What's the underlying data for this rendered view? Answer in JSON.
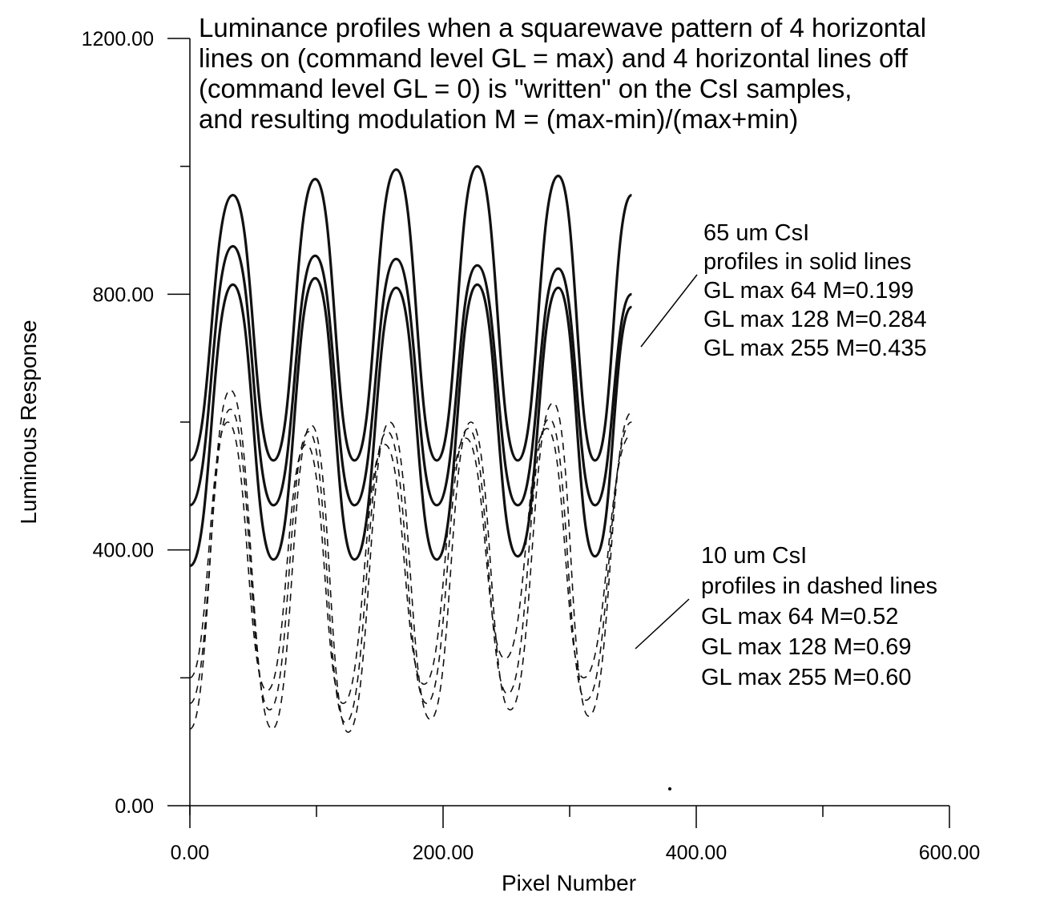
{
  "chart_data": {
    "type": "line",
    "title": [
      "Luminance profiles when a squarewave pattern of 4 horizontal",
      "lines on (command level GL = max) and 4 horizontal lines off",
      "(command level GL = 0) is \"written\" on the CsI samples,",
      "and resulting modulation  M = (max-min)/(max+min)"
    ],
    "xlabel": "Pixel Number",
    "ylabel": "Luminous Response",
    "xlim": [
      0,
      600
    ],
    "ylim": [
      0,
      1200
    ],
    "x_tick_labels": [
      "0.00",
      "200.00",
      "400.00",
      "600.00"
    ],
    "y_tick_labels": [
      "0.00",
      "400.00",
      "800.00",
      "1200.00"
    ],
    "annotations": {
      "csi65": [
        "65 um CsI",
        "profiles in solid lines",
        "GL max 64   M=0.199",
        "GL max 128 M=0.284",
        "GL max 255 M=0.435"
      ],
      "csi10": [
        "10 um CsI",
        "profiles in dashed lines",
        "GL max  64  M=0.52",
        "GL max 128 M=0.69",
        "GL max 255 M=0.60"
      ]
    },
    "series": [
      {
        "style": "solid",
        "x": [
          0,
          34,
          66,
          99,
          130,
          163,
          195,
          227,
          259,
          291,
          320,
          349
        ],
        "y": [
          540,
          955,
          540,
          980,
          540,
          995,
          540,
          1000,
          540,
          985,
          540,
          955
        ]
      },
      {
        "style": "solid",
        "x": [
          0,
          34,
          66,
          99,
          130,
          163,
          195,
          227,
          259,
          291,
          320,
          349
        ],
        "y": [
          470,
          875,
          470,
          860,
          470,
          855,
          470,
          845,
          470,
          840,
          470,
          800
        ]
      },
      {
        "style": "solid",
        "x": [
          0,
          34,
          66,
          99,
          130,
          163,
          195,
          227,
          259,
          291,
          320,
          349
        ],
        "y": [
          375,
          815,
          385,
          825,
          385,
          810,
          385,
          815,
          390,
          810,
          390,
          780
        ]
      },
      {
        "style": "dashed",
        "x": [
          0,
          32,
          65,
          96,
          125,
          158,
          190,
          222,
          253,
          287,
          315,
          349
        ],
        "y": [
          120,
          650,
          120,
          595,
          115,
          600,
          135,
          600,
          150,
          630,
          140,
          615
        ]
      },
      {
        "style": "dashed",
        "x": [
          0,
          32,
          63,
          94,
          123,
          156,
          187,
          220,
          251,
          284,
          313,
          349
        ],
        "y": [
          160,
          620,
          150,
          585,
          130,
          585,
          160,
          590,
          175,
          605,
          165,
          600
        ]
      },
      {
        "style": "dashed",
        "x": [
          0,
          30,
          61,
          92,
          121,
          154,
          185,
          218,
          249,
          282,
          311,
          349
        ],
        "y": [
          200,
          600,
          180,
          565,
          160,
          565,
          190,
          575,
          230,
          590,
          200,
          580
        ]
      }
    ]
  }
}
